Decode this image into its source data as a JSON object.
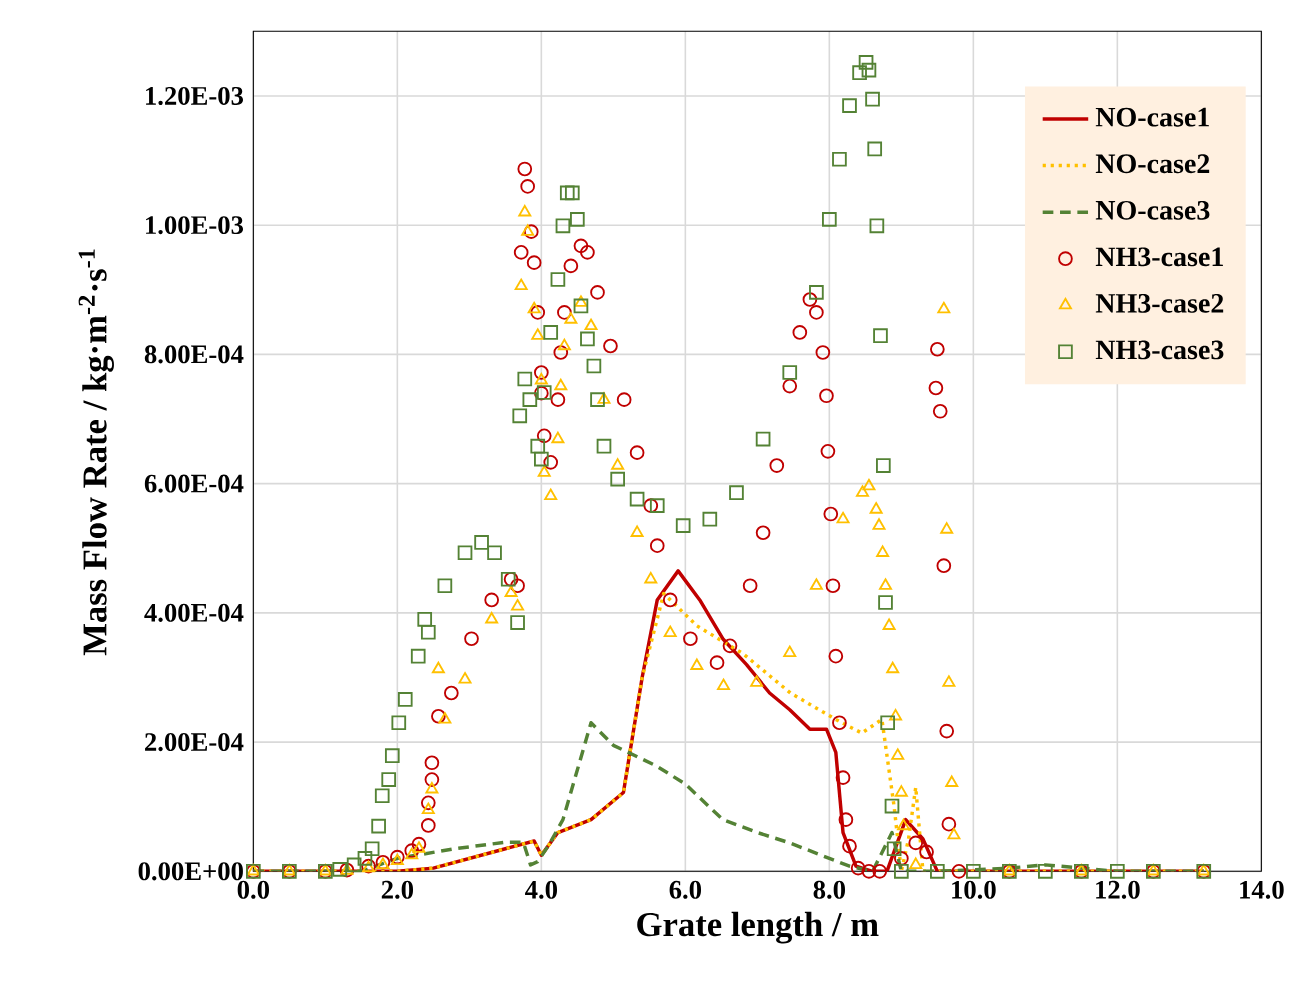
{
  "chart_data": {
    "type": "line",
    "xlabel": "Grate length / m",
    "ylabel": "Mass Flow Rate / kg·m$^{-2}$·s$^{-1}$",
    "xlim": [
      0,
      14
    ],
    "ylim": [
      0,
      0.0013
    ],
    "xticks": [
      {
        "value": 0,
        "label": "0.0"
      },
      {
        "value": 2,
        "label": "2.0"
      },
      {
        "value": 4,
        "label": "4.0"
      },
      {
        "value": 6,
        "label": "6.0"
      },
      {
        "value": 8,
        "label": "8.0"
      },
      {
        "value": 10,
        "label": "10.0"
      },
      {
        "value": 12,
        "label": "12.0"
      },
      {
        "value": 14,
        "label": "14.0"
      }
    ],
    "yticks": [
      {
        "value": 0,
        "label": "0.00E+00"
      },
      {
        "value": 0.0002,
        "label": "2.00E-04"
      },
      {
        "value": 0.0004,
        "label": "4.00E-04"
      },
      {
        "value": 0.0006,
        "label": "6.00E-04"
      },
      {
        "value": 0.0008,
        "label": "8.00E-04"
      },
      {
        "value": 0.001,
        "label": "1.00E-03"
      },
      {
        "value": 0.0012,
        "label": "1.20E-03"
      }
    ],
    "grid": true,
    "legend": "top right",
    "series": [
      {
        "name": "NO-case1",
        "line_style": "solid",
        "color": "#c00000",
        "x": [
          0,
          1,
          2,
          2.5,
          3,
          3.5,
          3.9,
          4.0,
          4.23,
          4.69,
          5.14,
          5.4,
          5.61,
          5.9,
          6.2,
          6.52,
          6.85,
          7.17,
          7.45,
          7.73,
          7.96,
          8.09,
          8.19,
          8.37,
          8.6,
          8.8,
          9.06,
          9.3,
          9.5,
          10,
          11,
          12,
          13.2
        ],
        "values": [
          0,
          0,
          0,
          5e-06,
          2e-05,
          3.5e-05,
          4.7e-05,
          2.5e-05,
          6e-05,
          8e-05,
          0.000122,
          0.0003,
          0.00042,
          0.000465,
          0.00042,
          0.00036,
          0.00032,
          0.000276,
          0.00025,
          0.00022,
          0.00022,
          0.000184,
          6e-05,
          8e-06,
          0,
          0,
          8e-05,
          5e-05,
          0,
          0,
          0,
          0,
          0
        ]
      },
      {
        "name": "NO-case2",
        "line_style": "dotted",
        "color": "#ffc000",
        "x": [
          0,
          1,
          2,
          2.5,
          3,
          3.5,
          3.9,
          4.0,
          4.23,
          4.69,
          5.14,
          5.4,
          5.7,
          6.16,
          6.8,
          7.46,
          8.09,
          8.45,
          8.73,
          8.9,
          9.0,
          9.1,
          9.2,
          9.3,
          9.5,
          10,
          11,
          12,
          13.2
        ],
        "values": [
          0,
          0,
          0,
          5e-06,
          2e-05,
          3.5e-05,
          4.7e-05,
          2.5e-05,
          6e-05,
          8e-05,
          0.000122,
          0.0003,
          0.00043,
          0.00038,
          0.000337,
          0.000276,
          0.000235,
          0.000214,
          0.000235,
          0.0001,
          0,
          5e-05,
          0.00013,
          0,
          0,
          0,
          0,
          0,
          0
        ]
      },
      {
        "name": "NO-case3",
        "line_style": "dashed",
        "color": "#548235",
        "x": [
          0,
          1.5,
          2.0,
          2.8,
          3.5,
          3.75,
          3.85,
          3.95,
          4.1,
          4.3,
          4.69,
          5.0,
          5.6,
          6.0,
          6.52,
          7.0,
          7.45,
          8.0,
          8.28,
          8.6,
          8.87,
          9.0,
          9.5,
          10.5,
          11.0,
          11.5,
          12,
          13.2
        ],
        "values": [
          0,
          0,
          2e-05,
          3.5e-05,
          4.5e-05,
          4.5e-05,
          1e-05,
          1.5e-05,
          4e-05,
          8e-05,
          0.00023,
          0.000195,
          0.000163,
          0.000135,
          8e-05,
          6e-05,
          4.4e-05,
          2e-05,
          8e-06,
          0,
          6e-05,
          0,
          0,
          5e-06,
          1e-05,
          5e-06,
          0,
          0
        ]
      },
      {
        "name": "NH3-case1",
        "type": "scatter",
        "marker": "circle",
        "color": "#c00000",
        "x": [
          0,
          0.5,
          1.0,
          1.3,
          1.6,
          1.8,
          2.0,
          2.2,
          2.3,
          2.43,
          2.43,
          2.48,
          2.48,
          2.57,
          2.75,
          3.03,
          3.31,
          3.58,
          3.67,
          3.77,
          3.81,
          3.86,
          3.72,
          3.9,
          3.95,
          4.0,
          4.0,
          4.04,
          4.13,
          4.23,
          4.27,
          4.32,
          4.41,
          4.55,
          4.64,
          4.78,
          4.96,
          5.15,
          5.33,
          5.52,
          5.61,
          5.79,
          6.07,
          6.44,
          6.62,
          6.9,
          7.08,
          7.27,
          7.45,
          7.59,
          7.73,
          7.82,
          7.91,
          7.96,
          7.98,
          8.02,
          8.05,
          8.09,
          8.14,
          8.19,
          8.23,
          8.28,
          8.4,
          8.55,
          8.7,
          9.0,
          9.2,
          9.35,
          9.5,
          9.48,
          9.54,
          9.59,
          9.63,
          9.66,
          9.8,
          10.5,
          11.5,
          12.5,
          13.2
        ],
        "values": [
          0,
          0,
          0,
          2e-06,
          8e-06,
          1.4e-05,
          2.2e-05,
          3.2e-05,
          4.2e-05,
          7.1e-05,
          0.000106,
          0.000142,
          0.000168,
          0.00024,
          0.000276,
          0.00036,
          0.00042,
          0.000452,
          0.000442,
          0.001087,
          0.00106,
          0.00099,
          0.000958,
          0.000942,
          0.000865,
          0.000772,
          0.00074,
          0.000674,
          0.000633,
          0.00073,
          0.000803,
          0.000865,
          0.000937,
          0.000968,
          0.000958,
          0.000896,
          0.000813,
          0.00073,
          0.000648,
          0.000566,
          0.000504,
          0.00042,
          0.00036,
          0.000323,
          0.000349,
          0.000442,
          0.000524,
          0.000628,
          0.000751,
          0.000834,
          0.000885,
          0.000865,
          0.000803,
          0.000736,
          0.00065,
          0.000553,
          0.000442,
          0.000333,
          0.00023,
          0.000145,
          8e-05,
          3.9e-05,
          5e-06,
          0,
          0,
          2e-05,
          4.4e-05,
          3e-05,
          0.000808,
          0.000748,
          0.000712,
          0.000473,
          0.000217,
          7.3e-05,
          0,
          0,
          0,
          0,
          0
        ]
      },
      {
        "name": "NH3-case2",
        "type": "scatter",
        "marker": "triangle",
        "color": "#ffc000",
        "x": [
          0,
          0.5,
          1.0,
          1.3,
          1.6,
          1.8,
          2.0,
          2.2,
          2.3,
          2.43,
          2.48,
          2.57,
          2.66,
          2.94,
          3.31,
          3.58,
          3.67,
          3.77,
          3.81,
          3.72,
          3.9,
          3.95,
          4.0,
          4.04,
          4.13,
          4.23,
          4.27,
          4.32,
          4.41,
          4.55,
          4.69,
          4.87,
          5.06,
          5.33,
          5.52,
          5.79,
          6.16,
          6.53,
          6.99,
          7.45,
          7.82,
          8.19,
          8.46,
          8.55,
          8.65,
          8.69,
          8.74,
          8.78,
          8.83,
          8.88,
          8.92,
          8.95,
          9.0,
          9.03,
          9.2,
          9.59,
          9.63,
          9.66,
          9.7,
          9.73,
          10.5,
          11.5,
          12.5,
          13.2
        ],
        "values": [
          0,
          0,
          0,
          1e-06,
          5e-06,
          1e-05,
          1.6e-05,
          2.5e-05,
          3.5e-05,
          9.5e-05,
          0.000127,
          0.000313,
          0.000235,
          0.000297,
          0.00039,
          0.000431,
          0.00041,
          0.00102,
          0.00099,
          0.000906,
          0.00087,
          0.000829,
          0.00076,
          0.000617,
          0.000581,
          0.000669,
          0.000751,
          0.000813,
          0.000854,
          0.00088,
          0.000844,
          0.00073,
          0.000628,
          0.000524,
          0.000452,
          0.000369,
          0.000318,
          0.000287,
          0.000292,
          0.000338,
          0.000442,
          0.000545,
          0.000586,
          0.000596,
          0.00056,
          0.000535,
          0.000493,
          0.000442,
          0.00038,
          0.000313,
          0.00024,
          0.000179,
          0.000122,
          7e-05,
          1e-05,
          0.00087,
          0.000529,
          0.000292,
          0.000137,
          5.6e-05,
          0,
          0,
          0,
          0
        ]
      },
      {
        "name": "NH3-case3",
        "type": "scatter",
        "marker": "square",
        "color": "#548235",
        "x": [
          0,
          0.5,
          1.0,
          1.2,
          1.4,
          1.55,
          1.65,
          1.74,
          1.79,
          1.88,
          1.93,
          2.02,
          2.11,
          2.29,
          2.38,
          2.43,
          2.66,
          2.94,
          3.17,
          3.35,
          3.54,
          3.67,
          3.77,
          3.84,
          3.7,
          3.95,
          4.0,
          4.04,
          4.13,
          4.23,
          4.3,
          4.36,
          4.43,
          4.5,
          4.55,
          4.64,
          4.73,
          4.78,
          4.87,
          5.06,
          5.33,
          5.61,
          5.97,
          6.34,
          6.71,
          7.08,
          7.45,
          7.82,
          8.0,
          8.14,
          8.28,
          8.42,
          8.51,
          8.55,
          8.6,
          8.63,
          8.66,
          8.71,
          8.75,
          8.78,
          8.81,
          8.87,
          8.9,
          9.0,
          9.5,
          10.0,
          10.5,
          11.0,
          11.5,
          12.0,
          12.5,
          13.2
        ],
        "values": [
          0,
          0,
          0,
          3e-06,
          1e-05,
          2e-05,
          3.5e-05,
          7e-05,
          0.000117,
          0.000142,
          0.000179,
          0.00023,
          0.000266,
          0.000333,
          0.00039,
          0.00037,
          0.000442,
          0.000493,
          0.000509,
          0.000493,
          0.000452,
          0.000385,
          0.000762,
          0.00073,
          0.000705,
          0.000658,
          0.000638,
          0.000741,
          0.000834,
          0.000916,
          0.000999,
          0.00105,
          0.00105,
          0.001009,
          0.000875,
          0.000824,
          0.000782,
          0.00073,
          0.000658,
          0.000607,
          0.000576,
          0.000566,
          0.000535,
          0.000545,
          0.000586,
          0.000669,
          0.000772,
          0.000896,
          0.001009,
          0.001102,
          0.001185,
          0.001236,
          0.001252,
          0.00124,
          0.001195,
          0.001118,
          0.000999,
          0.000829,
          0.000628,
          0.000416,
          0.00023,
          0.000101,
          3.5e-05,
          0,
          0,
          0,
          0,
          0,
          0,
          0,
          0,
          0
        ]
      }
    ]
  }
}
